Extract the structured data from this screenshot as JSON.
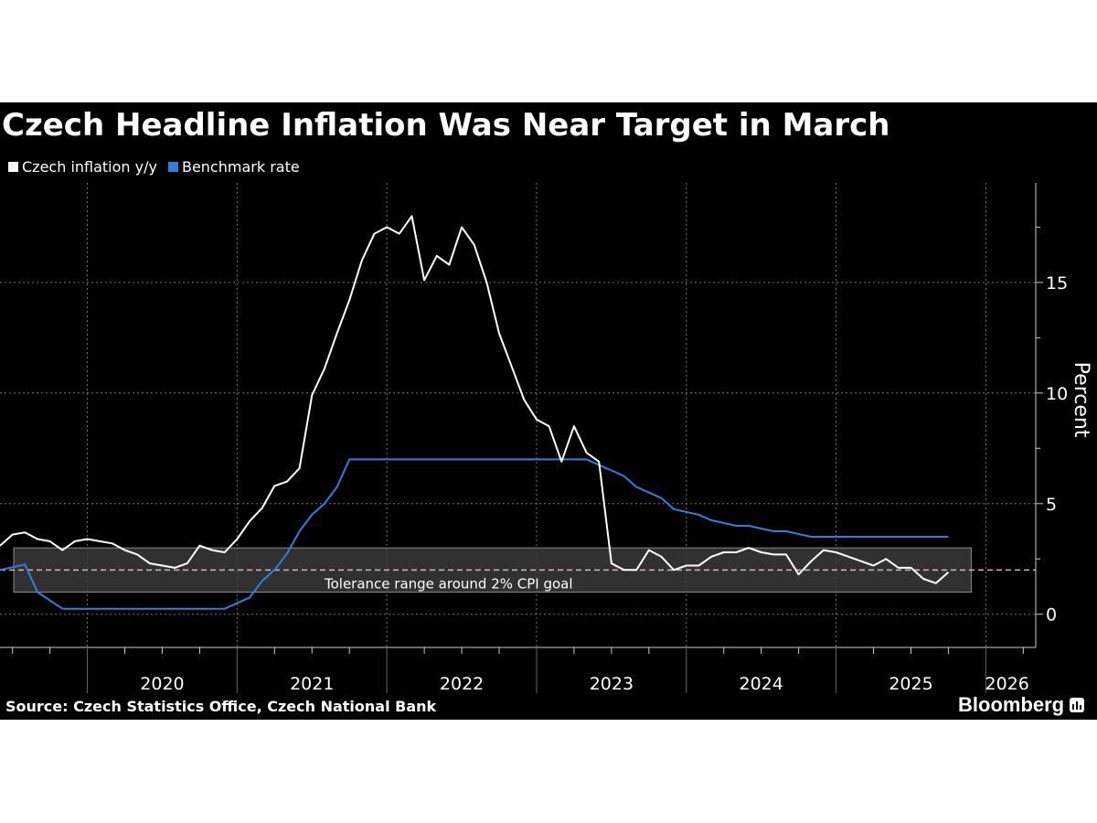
{
  "title": "Czech Headline Inflation Was Near Target in March",
  "source": "Source: Czech Statistics Office, Czech National Bank",
  "brand": "Bloomberg",
  "colors": {
    "background": "#000000",
    "inflation": "#ffffff",
    "rate": "#2f7fe0",
    "band": "#3a3a3a",
    "target_line": "#d9b3c2",
    "grid": "#777777"
  },
  "chart_data": {
    "type": "line",
    "title": "Czech Headline Inflation Was Near Target in March",
    "ylabel": "Percent",
    "ylim": [
      -1.5,
      19.5
    ],
    "yticks": [
      0,
      5,
      10,
      15
    ],
    "xlim": [
      "2019-06",
      "2026-05"
    ],
    "year_labels": [
      "2020",
      "2021",
      "2022",
      "2023",
      "2024",
      "2025",
      "2026"
    ],
    "grid": "dotted",
    "legend_position": "top-left",
    "annotation": {
      "text": "Tolerance range around 2% CPI goal",
      "band": [
        1,
        3
      ],
      "target": 2
    },
    "series": [
      {
        "name": "Czech inflation y/y",
        "color": "#ffffff",
        "points": [
          [
            "2019-06",
            3.1
          ],
          [
            "2019-07",
            3.6
          ],
          [
            "2019-08",
            3.7
          ],
          [
            "2019-09",
            3.4
          ],
          [
            "2019-10",
            3.3
          ],
          [
            "2019-11",
            2.9
          ],
          [
            "2019-12",
            3.3
          ],
          [
            "2020-01",
            3.4
          ],
          [
            "2020-02",
            3.3
          ],
          [
            "2020-03",
            3.2
          ],
          [
            "2020-04",
            2.9
          ],
          [
            "2020-05",
            2.7
          ],
          [
            "2020-06",
            2.3
          ],
          [
            "2020-07",
            2.2
          ],
          [
            "2020-08",
            2.1
          ],
          [
            "2020-09",
            2.3
          ],
          [
            "2020-10",
            3.1
          ],
          [
            "2020-11",
            2.9
          ],
          [
            "2020-12",
            2.8
          ],
          [
            "2021-01",
            3.4
          ],
          [
            "2021-02",
            4.2
          ],
          [
            "2021-03",
            4.8
          ],
          [
            "2021-04",
            5.8
          ],
          [
            "2021-05",
            6.0
          ],
          [
            "2021-06",
            6.6
          ],
          [
            "2021-07",
            9.9
          ],
          [
            "2021-08",
            11.1
          ],
          [
            "2021-09",
            12.7
          ],
          [
            "2021-10",
            14.2
          ],
          [
            "2021-11",
            16.0
          ],
          [
            "2021-12",
            17.2
          ],
          [
            "2022-01",
            17.5
          ],
          [
            "2022-02",
            17.2
          ],
          [
            "2022-03",
            18.0
          ],
          [
            "2022-04",
            15.1
          ],
          [
            "2022-05",
            16.2
          ],
          [
            "2022-06",
            15.8
          ],
          [
            "2022-07",
            17.5
          ],
          [
            "2022-08",
            16.7
          ],
          [
            "2022-09",
            15.0
          ],
          [
            "2022-10",
            12.7
          ],
          [
            "2022-11",
            11.2
          ],
          [
            "2022-12",
            9.7
          ],
          [
            "2023-01",
            8.8
          ],
          [
            "2023-02",
            8.5
          ],
          [
            "2023-03",
            6.9
          ],
          [
            "2023-04",
            8.5
          ],
          [
            "2023-05",
            7.3
          ],
          [
            "2023-06",
            6.9
          ],
          [
            "2023-07",
            2.3
          ],
          [
            "2023-08",
            2.0
          ],
          [
            "2023-09",
            2.0
          ],
          [
            "2023-10",
            2.9
          ],
          [
            "2023-11",
            2.6
          ],
          [
            "2023-12",
            2.0
          ],
          [
            "2024-01",
            2.2
          ],
          [
            "2024-02",
            2.2
          ],
          [
            "2024-03",
            2.6
          ],
          [
            "2024-04",
            2.8
          ],
          [
            "2024-05",
            2.8
          ],
          [
            "2024-06",
            3.0
          ],
          [
            "2024-07",
            2.8
          ],
          [
            "2024-08",
            2.7
          ],
          [
            "2024-09",
            2.7
          ],
          [
            "2024-10",
            1.8
          ],
          [
            "2024-11",
            2.4
          ],
          [
            "2024-12",
            2.9
          ],
          [
            "2025-01",
            2.8
          ],
          [
            "2025-02",
            2.6
          ],
          [
            "2025-03",
            2.4
          ],
          [
            "2025-04",
            2.2
          ],
          [
            "2025-05",
            2.5
          ],
          [
            "2025-06",
            2.1
          ],
          [
            "2025-07",
            2.1
          ],
          [
            "2025-08",
            1.6
          ],
          [
            "2025-09",
            1.4
          ],
          [
            "2025-10",
            1.9
          ]
        ]
      },
      {
        "name": "Benchmark rate",
        "color": "#2f7fe0",
        "points": [
          [
            "2019-06",
            2.0
          ],
          [
            "2019-08",
            2.25
          ],
          [
            "2019-09",
            1.0
          ],
          [
            "2019-11",
            0.25
          ],
          [
            "2020-12",
            0.25
          ],
          [
            "2021-01",
            0.5
          ],
          [
            "2021-02",
            0.75
          ],
          [
            "2021-03",
            1.5
          ],
          [
            "2021-04",
            2.0
          ],
          [
            "2021-05",
            2.75
          ],
          [
            "2021-06",
            3.75
          ],
          [
            "2021-07",
            4.5
          ],
          [
            "2021-08",
            5.0
          ],
          [
            "2021-09",
            5.75
          ],
          [
            "2021-10",
            7.0
          ],
          [
            "2023-05",
            7.0
          ],
          [
            "2023-06",
            6.75
          ],
          [
            "2023-08",
            6.25
          ],
          [
            "2023-09",
            5.75
          ],
          [
            "2023-11",
            5.25
          ],
          [
            "2023-12",
            4.75
          ],
          [
            "2024-02",
            4.5
          ],
          [
            "2024-03",
            4.25
          ],
          [
            "2024-05",
            4.0
          ],
          [
            "2024-06",
            4.0
          ],
          [
            "2024-08",
            3.75
          ],
          [
            "2024-09",
            3.75
          ],
          [
            "2024-11",
            3.5
          ],
          [
            "2025-10",
            3.5
          ]
        ]
      }
    ]
  }
}
